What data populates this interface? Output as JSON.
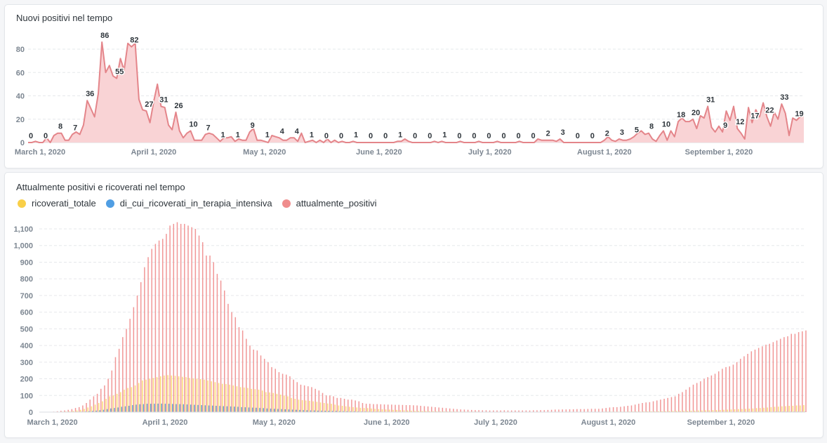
{
  "colors": {
    "line": "#e4858a",
    "area": "#f9d3d5",
    "ricoverati_totale": "#f9cf48",
    "terapia_intensiva": "#509ee3",
    "attualmente_positivi": "#ef8c8c",
    "grid": "#e6e8eb"
  },
  "chart_data": [
    {
      "type": "area",
      "title": "Nuovi positivi nel tempo",
      "xlabel": "",
      "ylabel": "",
      "x_start": "2020-02-27",
      "x_ticks": [
        {
          "label": "March 1, 2020",
          "index": 3
        },
        {
          "label": "April 1, 2020",
          "index": 34
        },
        {
          "label": "May 1, 2020",
          "index": 64
        },
        {
          "label": "June 1, 2020",
          "index": 95
        },
        {
          "label": "July 1, 2020",
          "index": 125
        },
        {
          "label": "August 1, 2020",
          "index": 156
        },
        {
          "label": "September 1, 2020",
          "index": 187
        }
      ],
      "y_ticks": [
        "0",
        "20",
        "40",
        "60",
        "80"
      ],
      "ylim": [
        0,
        90
      ],
      "label_every": 4,
      "values": [
        0,
        0,
        1,
        0,
        0,
        4,
        0,
        6,
        8,
        8,
        2,
        2,
        7,
        9,
        7,
        15,
        36,
        29,
        22,
        42,
        86,
        60,
        66,
        57,
        55,
        72,
        62,
        85,
        82,
        85,
        37,
        28,
        27,
        17,
        35,
        50,
        31,
        30,
        15,
        11,
        26,
        10,
        4,
        8,
        10,
        2,
        2,
        2,
        7,
        8,
        7,
        4,
        1,
        4,
        4,
        5,
        1,
        3,
        2,
        2,
        9,
        12,
        2,
        2,
        1,
        0,
        6,
        5,
        4,
        2,
        2,
        4,
        4,
        1,
        8,
        0,
        1,
        2,
        0,
        2,
        0,
        3,
        0,
        2,
        0,
        1,
        0,
        0,
        1,
        0,
        0,
        0,
        0,
        0,
        0,
        0,
        0,
        0,
        0,
        0,
        1,
        1,
        3,
        1,
        0,
        0,
        0,
        0,
        0,
        0,
        1,
        0,
        1,
        0,
        0,
        0,
        0,
        1,
        0,
        0,
        0,
        0,
        1,
        0,
        0,
        0,
        0,
        1,
        0,
        0,
        0,
        0,
        0,
        1,
        0,
        0,
        0,
        0,
        3,
        2,
        2,
        2,
        2,
        1,
        3,
        0,
        0,
        0,
        0,
        0,
        0,
        0,
        0,
        0,
        0,
        0,
        2,
        5,
        2,
        1,
        3,
        2,
        2,
        3,
        5,
        8,
        10,
        7,
        8,
        3,
        1,
        6,
        10,
        2,
        10,
        5,
        18,
        21,
        18,
        18,
        20,
        12,
        23,
        21,
        31,
        13,
        9,
        14,
        9,
        27,
        19,
        31,
        12,
        8,
        3,
        30,
        17,
        28,
        22,
        34,
        22,
        14,
        26,
        20,
        33,
        25,
        6,
        21,
        19,
        22,
        25
      ]
    },
    {
      "type": "bar",
      "title": "Attualmente positivi e ricoverati nel tempo",
      "xlabel": "",
      "ylabel": "",
      "x_start": "2020-02-27",
      "x_ticks": [
        {
          "label": "March 1, 2020",
          "index": 3
        },
        {
          "label": "April 1, 2020",
          "index": 34
        },
        {
          "label": "May 1, 2020",
          "index": 64
        },
        {
          "label": "June 1, 2020",
          "index": 95
        },
        {
          "label": "July 1, 2020",
          "index": 125
        },
        {
          "label": "August 1, 2020",
          "index": 156
        },
        {
          "label": "September 1, 2020",
          "index": 187
        }
      ],
      "y_ticks": [
        "0",
        "100",
        "200",
        "300",
        "400",
        "500",
        "600",
        "700",
        "800",
        "900",
        "1,000",
        "1,100"
      ],
      "ylim": [
        0,
        1100
      ],
      "legend_position": "top-left",
      "series": [
        {
          "name": "ricoverati_totale",
          "key": "ricoverati_totale",
          "values": [
            0,
            0,
            0,
            1,
            1,
            2,
            3,
            4,
            5,
            7,
            10,
            14,
            20,
            28,
            35,
            45,
            55,
            65,
            80,
            95,
            100,
            110,
            120,
            135,
            145,
            150,
            160,
            175,
            190,
            195,
            200,
            205,
            210,
            215,
            220,
            222,
            220,
            218,
            215,
            212,
            210,
            205,
            202,
            200,
            198,
            195,
            190,
            185,
            180,
            175,
            170,
            168,
            165,
            160,
            155,
            150,
            148,
            145,
            140,
            138,
            135,
            130,
            120,
            118,
            115,
            110,
            105,
            100,
            95,
            85,
            80,
            75,
            72,
            70,
            68,
            65,
            62,
            58,
            55,
            52,
            50,
            45,
            40,
            38,
            35,
            32,
            30,
            28,
            26,
            25,
            24,
            22,
            20,
            18,
            17,
            16,
            15,
            14,
            13,
            12,
            11,
            10,
            9,
            8,
            8,
            7,
            7,
            6,
            6,
            5,
            5,
            5,
            4,
            4,
            4,
            3,
            3,
            3,
            3,
            3,
            3,
            2,
            2,
            2,
            2,
            2,
            2,
            2,
            2,
            2,
            2,
            2,
            2,
            2,
            2,
            2,
            2,
            2,
            2,
            2,
            2,
            2,
            2,
            2,
            2,
            2,
            2,
            2,
            2,
            2,
            2,
            2,
            2,
            2,
            2,
            3,
            3,
            3,
            3,
            3,
            3,
            3,
            4,
            4,
            4,
            4,
            5,
            5,
            5,
            5,
            6,
            6,
            6,
            7,
            7,
            7,
            8,
            8,
            8,
            9,
            9,
            10,
            10,
            11,
            11,
            12,
            12,
            13,
            14,
            15,
            16,
            17,
            18,
            19,
            20,
            21,
            22,
            24,
            25,
            26,
            28,
            30,
            32,
            33,
            35,
            36,
            38,
            38,
            40,
            40,
            42
          ]
        },
        {
          "name": "di_cui_ricoverati_in_terapia_intensiva",
          "key": "terapia_intensiva",
          "values": [
            0,
            0,
            0,
            0,
            0,
            0,
            1,
            1,
            1,
            2,
            2,
            3,
            4,
            5,
            7,
            9,
            11,
            14,
            18,
            22,
            25,
            28,
            32,
            35,
            38,
            42,
            45,
            47,
            48,
            50,
            50,
            50,
            51,
            51,
            50,
            50,
            49,
            48,
            48,
            47,
            46,
            45,
            44,
            43,
            42,
            41,
            40,
            39,
            38,
            37,
            36,
            35,
            34,
            33,
            32,
            30,
            29,
            28,
            27,
            26,
            25,
            24,
            22,
            21,
            20,
            19,
            18,
            17,
            16,
            15,
            14,
            13,
            12,
            11,
            10,
            10,
            9,
            9,
            8,
            8,
            7,
            7,
            6,
            6,
            5,
            5,
            5,
            4,
            4,
            4,
            3,
            3,
            3,
            3,
            2,
            2,
            2,
            2,
            2,
            2,
            1,
            1,
            1,
            1,
            1,
            1,
            1,
            1,
            1,
            1,
            1,
            1,
            1,
            1,
            1,
            0,
            0,
            0,
            0,
            0,
            0,
            0,
            0,
            0,
            0,
            0,
            0,
            0,
            0,
            0,
            0,
            0,
            0,
            0,
            0,
            0,
            0,
            0,
            0,
            0,
            0,
            0,
            0,
            0,
            0,
            0,
            0,
            0,
            0,
            0,
            0,
            0,
            0,
            0,
            0,
            0,
            0,
            0,
            0,
            0,
            0,
            0,
            0,
            0,
            0,
            0,
            0,
            0,
            0,
            0,
            0,
            0,
            0,
            0,
            0,
            0,
            1,
            1,
            1,
            1,
            1,
            1,
            1,
            1,
            1,
            1,
            1,
            1,
            1,
            1,
            1,
            1,
            1,
            1,
            2,
            2,
            2,
            2,
            2,
            2,
            2,
            2,
            3,
            3,
            3,
            3,
            3,
            3,
            3,
            3,
            3
          ]
        },
        {
          "name": "attualmente_positivi",
          "key": "attualmente_positivi",
          "values": [
            0,
            1,
            2,
            3,
            5,
            8,
            10,
            14,
            18,
            25,
            30,
            40,
            55,
            75,
            95,
            110,
            140,
            160,
            200,
            250,
            330,
            380,
            450,
            500,
            560,
            630,
            700,
            780,
            870,
            930,
            980,
            1010,
            1030,
            1040,
            1070,
            1120,
            1130,
            1140,
            1130,
            1130,
            1120,
            1110,
            1100,
            1060,
            1020,
            940,
            940,
            900,
            830,
            790,
            730,
            650,
            600,
            570,
            510,
            490,
            440,
            400,
            375,
            370,
            340,
            320,
            300,
            270,
            260,
            240,
            230,
            225,
            215,
            195,
            180,
            165,
            160,
            155,
            150,
            140,
            130,
            115,
            100,
            100,
            95,
            85,
            85,
            80,
            75,
            75,
            70,
            65,
            55,
            50,
            50,
            48,
            48,
            47,
            46,
            45,
            45,
            44,
            44,
            43,
            42,
            42,
            41,
            40,
            38,
            36,
            34,
            32,
            30,
            28,
            26,
            24,
            22,
            20,
            18,
            16,
            15,
            14,
            13,
            12,
            12,
            11,
            11,
            10,
            10,
            10,
            10,
            11,
            10,
            10,
            10,
            10,
            10,
            10,
            10,
            11,
            11,
            12,
            12,
            13,
            14,
            15,
            15,
            16,
            16,
            17,
            17,
            18,
            18,
            18,
            19,
            20,
            20,
            20,
            22,
            25,
            28,
            30,
            30,
            32,
            35,
            38,
            40,
            45,
            50,
            55,
            58,
            60,
            65,
            70,
            75,
            80,
            85,
            90,
            95,
            110,
            120,
            135,
            150,
            165,
            175,
            185,
            200,
            210,
            220,
            230,
            245,
            260,
            270,
            275,
            285,
            300,
            320,
            335,
            350,
            365,
            375,
            385,
            395,
            405,
            410,
            420,
            430,
            440,
            450,
            455,
            470,
            470,
            480,
            485,
            490
          ]
        }
      ]
    }
  ]
}
